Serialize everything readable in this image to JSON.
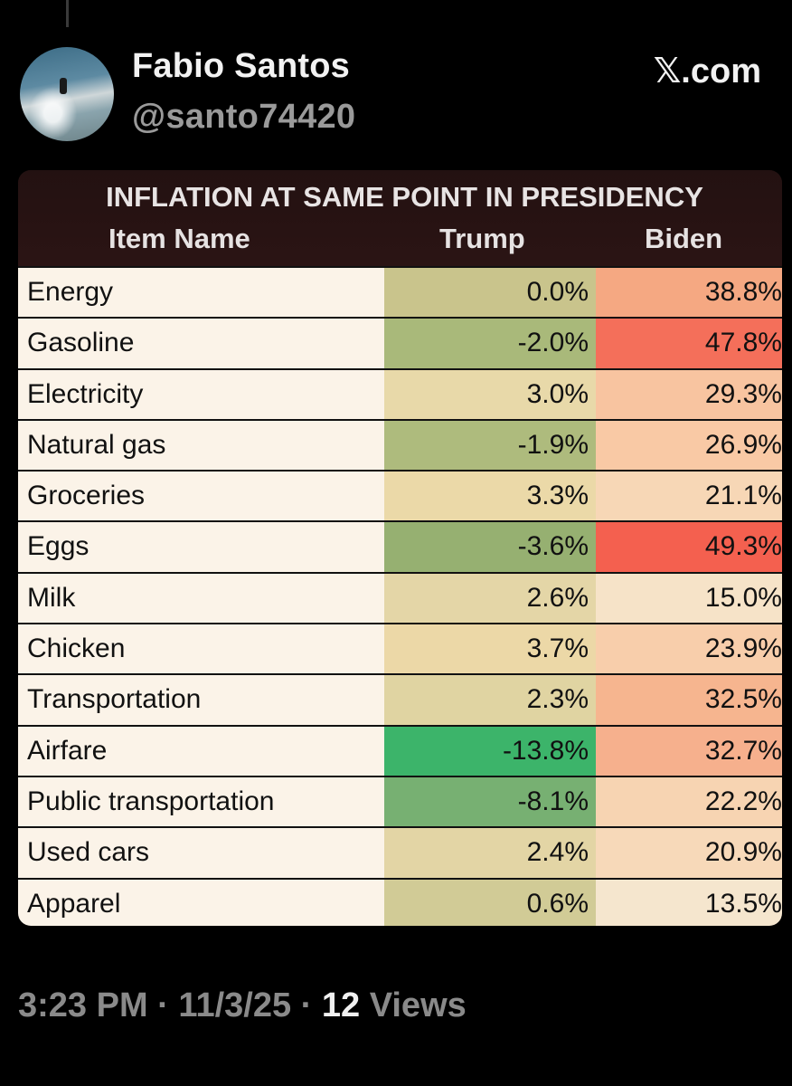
{
  "post": {
    "author_name": "Fabio Santos",
    "handle": "@santo74420",
    "site": "𝕏.com"
  },
  "table": {
    "title": "INFLATION AT SAME POINT IN PRESIDENCY",
    "headers": {
      "item": "Item Name",
      "trump": "Trump",
      "biden": "Biden"
    },
    "rows": [
      {
        "item": "Energy",
        "trump": "0.0%",
        "biden": "38.8%",
        "trump_color": "#c9c48c",
        "biden_color": "#f5a882"
      },
      {
        "item": "Gasoline",
        "trump": "-2.0%",
        "biden": "47.8%",
        "trump_color": "#a9b97a",
        "biden_color": "#f46f5a"
      },
      {
        "item": "Electricity",
        "trump": "3.0%",
        "biden": "29.3%",
        "trump_color": "#e8d9a9",
        "biden_color": "#f8c4a0"
      },
      {
        "item": "Natural gas",
        "trump": "-1.9%",
        "biden": "26.9%",
        "trump_color": "#aebb7d",
        "biden_color": "#f9c9a5"
      },
      {
        "item": "Groceries",
        "trump": "3.3%",
        "biden": "21.1%",
        "trump_color": "#ebd9a8",
        "biden_color": "#f7d7b6"
      },
      {
        "item": "Eggs",
        "trump": "-3.6%",
        "biden": "49.3%",
        "trump_color": "#96b071",
        "biden_color": "#f4604f"
      },
      {
        "item": "Milk",
        "trump": "2.6%",
        "biden": "15.0%",
        "trump_color": "#e4d6a7",
        "biden_color": "#f6e3c8"
      },
      {
        "item": "Chicken",
        "trump": "3.7%",
        "biden": "23.9%",
        "trump_color": "#ecd8a7",
        "biden_color": "#f8ceab"
      },
      {
        "item": "Transportation",
        "trump": "2.3%",
        "biden": "32.5%",
        "trump_color": "#e0d4a2",
        "biden_color": "#f6b58f"
      },
      {
        "item": "Airfare",
        "trump": "-13.8%",
        "biden": "32.7%",
        "trump_color": "#3cb46a",
        "biden_color": "#f6b08d"
      },
      {
        "item": "Public transportation",
        "trump": "-8.1%",
        "biden": "22.2%",
        "trump_color": "#77b072",
        "biden_color": "#f7d4b2"
      },
      {
        "item": "Used cars",
        "trump": "2.4%",
        "biden": "20.9%",
        "trump_color": "#e3d5a5",
        "biden_color": "#f7d9b9"
      },
      {
        "item": "Apparel",
        "trump": "0.6%",
        "biden": "13.5%",
        "trump_color": "#d1cb96",
        "biden_color": "#f5e6ce"
      }
    ]
  },
  "meta": {
    "time": "3:23 PM",
    "separator": " · ",
    "date": "11/3/25",
    "views_count": "12",
    "views_label": " Views"
  }
}
